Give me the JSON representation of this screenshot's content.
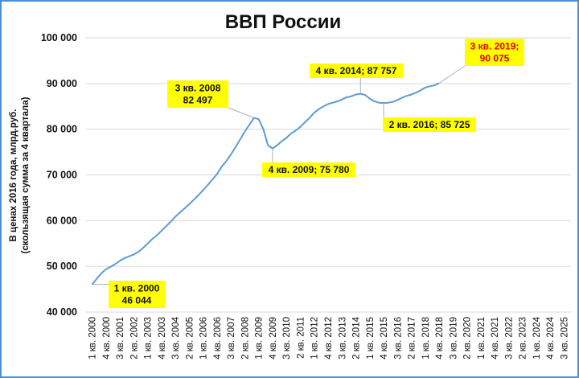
{
  "chart_data": {
    "type": "line",
    "title": "ВВП России",
    "ylabel_line1": "В ценах 2016 года, млрд.руб.",
    "ylabel_line2": "(скользящая сумма за 4 квартала)",
    "xlabel": "",
    "ylim": [
      40000,
      100000
    ],
    "yticks": [
      "40 000",
      "50 000",
      "60 000",
      "70 000",
      "80 000",
      "90 000",
      "100 000"
    ],
    "ytick_values": [
      40000,
      50000,
      60000,
      70000,
      80000,
      90000,
      100000
    ],
    "grid": true,
    "line_color": "#5b9bd5",
    "xtick_labels": [
      "1 кв. 2000",
      "4 кв. 2000",
      "3 кв. 2001",
      "2 кв. 2002",
      "1 кв. 2003",
      "4 кв. 2003",
      "3 кв. 2004",
      "2 кв. 2005",
      "1 кв. 2006",
      "4 кв. 2006",
      "3 кв. 2007",
      "2 кв. 2008",
      "1 кв. 2009",
      "4 кв. 2009",
      "3 кв. 2010",
      "2 кв. 2011",
      "1 кв. 2012",
      "4 кв. 2012",
      "3 кв. 2013",
      "2 кв. 2014",
      "1 кв. 2015",
      "4 кв. 2015",
      "3 кв. 2016",
      "2 кв. 2017",
      "1 кв. 2018",
      "4 кв. 2018",
      "3 кв. 2019",
      "2 кв. 2020",
      "1 кв. 2021",
      "4 кв. 2021",
      "3 кв. 2022",
      "2 кв. 2023",
      "1 кв. 2024",
      "4 кв. 2024",
      "3 кв. 2025"
    ],
    "values": [
      46044,
      47300,
      48500,
      49400,
      49900,
      50500,
      51200,
      51800,
      52200,
      52600,
      53200,
      54000,
      55000,
      56000,
      56800,
      57800,
      58800,
      59800,
      60900,
      61800,
      62700,
      63600,
      64600,
      65600,
      66700,
      67800,
      69000,
      70200,
      71800,
      73000,
      74500,
      76100,
      77800,
      79500,
      81000,
      82497,
      82200,
      80000,
      76500,
      75780,
      76500,
      77400,
      78100,
      79100,
      79700,
      80500,
      81500,
      82500,
      83600,
      84400,
      85000,
      85500,
      85800,
      86100,
      86500,
      87000,
      87200,
      87600,
      87757,
      87500,
      86700,
      86100,
      85800,
      85725,
      85800,
      86000,
      86400,
      86900,
      87300,
      87600,
      88000,
      88500,
      89100,
      89400,
      89600,
      90075
    ],
    "callouts": [
      {
        "lines": [
          "1 кв. 2000",
          "46 044"
        ],
        "index": 0,
        "value": 46044
      },
      {
        "lines": [
          "3 кв. 2008",
          "82 497"
        ],
        "index": 35,
        "value": 82497
      },
      {
        "lines": [
          "4 кв. 2009; 75 780"
        ],
        "index": 39,
        "value": 75780
      },
      {
        "lines": [
          "4 кв. 2014; 87 757"
        ],
        "index": 58,
        "value": 87757
      },
      {
        "lines": [
          "2 кв. 2016; 85 725"
        ],
        "index": 63,
        "value": 85725
      },
      {
        "lines": [
          "3 кв. 2019;",
          "90 075"
        ],
        "index": 75,
        "value": 90075,
        "color": "red"
      }
    ],
    "callout_fill": "#ffff00"
  }
}
